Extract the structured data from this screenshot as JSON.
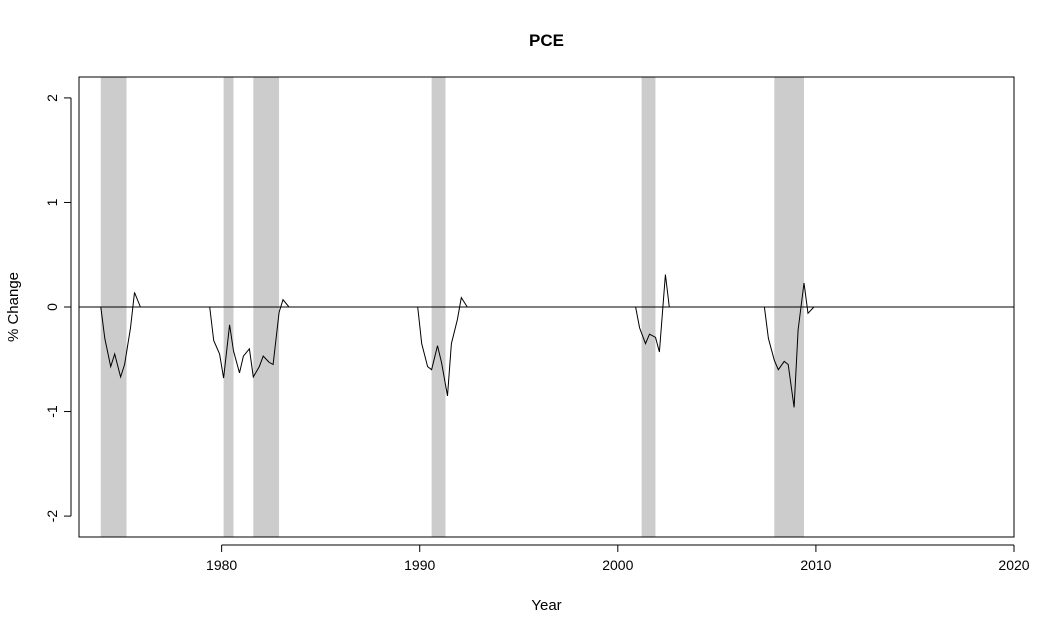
{
  "chart_data": {
    "type": "line",
    "title": "PCE",
    "xlabel": "Year",
    "ylabel": "% Change",
    "xlim": [
      1972.8,
      2020
    ],
    "ylim": [
      -2.2,
      2.2
    ],
    "x_ticks": [
      1980,
      1990,
      2000,
      2010,
      2020
    ],
    "x_tick_labels": [
      "1980",
      "1990",
      "2000",
      "2010",
      "2020"
    ],
    "y_ticks": [
      -2,
      -1,
      0,
      1,
      2
    ],
    "y_tick_labels": [
      "-2",
      "-1",
      "0",
      "1",
      "2"
    ],
    "reference_line": 0,
    "recession_shading": [
      {
        "start": 1973.9,
        "end": 1975.2
      },
      {
        "start": 1980.1,
        "end": 1980.6
      },
      {
        "start": 1981.6,
        "end": 1982.9
      },
      {
        "start": 1990.6,
        "end": 1991.3
      },
      {
        "start": 2001.2,
        "end": 2001.9
      },
      {
        "start": 2007.9,
        "end": 2009.4
      }
    ],
    "series": [
      {
        "segments": [
          {
            "x": [
              1973.9,
              1974.1,
              1974.4,
              1974.6,
              1974.9,
              1975.1,
              1975.4,
              1975.6,
              1975.9
            ],
            "y": [
              0.0,
              -0.3,
              -0.57,
              -0.45,
              -0.67,
              -0.55,
              -0.2,
              0.14,
              0.0
            ]
          },
          {
            "x": [
              1979.4,
              1979.6,
              1979.9,
              1980.1,
              1980.4,
              1980.6,
              1980.9,
              1981.1,
              1981.4,
              1981.6,
              1981.9,
              1982.1,
              1982.4,
              1982.6,
              1982.9,
              1983.1,
              1983.4
            ],
            "y": [
              0.0,
              -0.32,
              -0.45,
              -0.68,
              -0.17,
              -0.42,
              -0.63,
              -0.47,
              -0.4,
              -0.67,
              -0.57,
              -0.47,
              -0.53,
              -0.55,
              -0.05,
              0.07,
              0.0
            ]
          },
          {
            "x": [
              1989.9,
              1990.1,
              1990.4,
              1990.6,
              1990.9,
              1991.1,
              1991.4,
              1991.6,
              1991.9,
              1992.1,
              1992.4
            ],
            "y": [
              0.0,
              -0.35,
              -0.57,
              -0.6,
              -0.37,
              -0.53,
              -0.85,
              -0.35,
              -0.12,
              0.09,
              0.0
            ]
          },
          {
            "x": [
              2000.9,
              2001.1,
              2001.4,
              2001.6,
              2001.9,
              2002.1,
              2002.4,
              2002.6
            ],
            "y": [
              0.0,
              -0.2,
              -0.35,
              -0.26,
              -0.29,
              -0.43,
              0.31,
              0.0
            ]
          },
          {
            "x": [
              2007.4,
              2007.6,
              2007.9,
              2008.1,
              2008.4,
              2008.6,
              2008.9,
              2009.1,
              2009.4,
              2009.6,
              2009.9,
              2010.1
            ],
            "y": [
              0.0,
              -0.3,
              -0.51,
              -0.6,
              -0.52,
              -0.55,
              -0.96,
              -0.22,
              0.23,
              -0.06,
              0.0,
              0.0
            ]
          }
        ]
      }
    ]
  }
}
